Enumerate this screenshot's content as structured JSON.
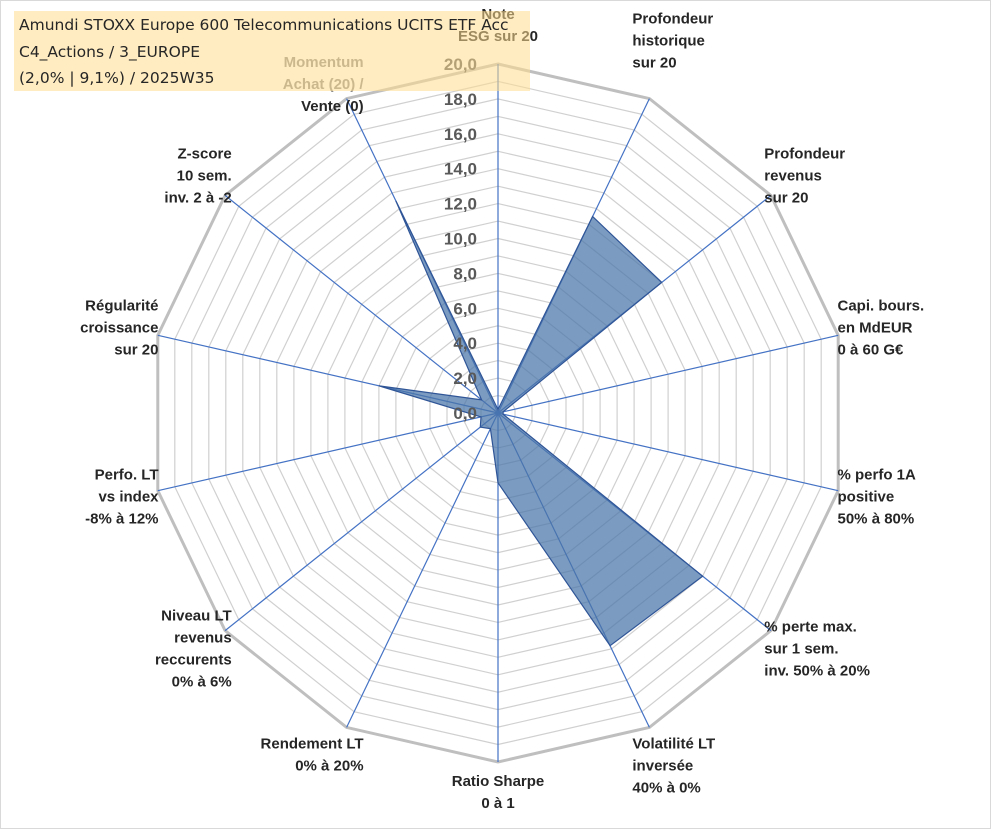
{
  "chart_data": {
    "type": "radar",
    "title": "Amundi STOXX Europe 600 Telecommunications UCITS ETF Acc",
    "subtitle_lines": [
      "C4_Actions / 3_EUROPE",
      "(2,0% | 9,1%) / 2025W35"
    ],
    "rlim": [
      0,
      20
    ],
    "rticks": [
      "0,0",
      "2,0",
      "4,0",
      "6,0",
      "8,0",
      "10,0",
      "12,0",
      "14,0",
      "16,0",
      "18,0",
      "20,0"
    ],
    "grid": true,
    "axes": [
      {
        "label_lines": [
          "Note",
          "ESG sur 20"
        ]
      },
      {
        "label_lines": [
          "Profondeur",
          "historique",
          "sur 20"
        ]
      },
      {
        "label_lines": [
          "Profondeur",
          "revenus",
          "sur 20"
        ]
      },
      {
        "label_lines": [
          "Capi. bours.",
          "en MdEUR",
          "0 à 60 G€"
        ]
      },
      {
        "label_lines": [
          "% perfo 1A",
          "positive",
          "50% à 80%"
        ]
      },
      {
        "label_lines": [
          "% perte max.",
          "sur 1 sem.",
          "inv. 50% à 20%"
        ]
      },
      {
        "label_lines": [
          "Volatilité LT",
          "inversée",
          "40% à 0%"
        ]
      },
      {
        "label_lines": [
          "Ratio Sharpe",
          "0 à 1"
        ]
      },
      {
        "label_lines": [
          "Rendement LT",
          "0% à 20%"
        ]
      },
      {
        "label_lines": [
          "Niveau LT",
          "revenus",
          "reccurents",
          "0% à 6%"
        ]
      },
      {
        "label_lines": [
          "Perfo. LT",
          "vs index",
          "-8% à 12%"
        ]
      },
      {
        "label_lines": [
          "Régularité",
          "croissance",
          "sur 20"
        ]
      },
      {
        "label_lines": [
          "Z-score",
          "10 sem.",
          "inv. 2 à -2"
        ]
      },
      {
        "label_lines": [
          "Momentum",
          "Achat (20) /",
          "Vente (0)"
        ]
      }
    ],
    "series": [
      {
        "values": [
          0.2,
          12.5,
          12.0,
          0.3,
          0.3,
          15.0,
          14.8,
          4.0,
          1.0,
          1.3,
          1.0,
          7.0,
          1.2,
          13.5
        ]
      }
    ],
    "colors": {
      "fill": "#4a75a8",
      "stroke": "#2f5597",
      "spoke": "#4472c4",
      "grid": "#d0d0d0",
      "title_box": "#ffdc8c"
    }
  }
}
